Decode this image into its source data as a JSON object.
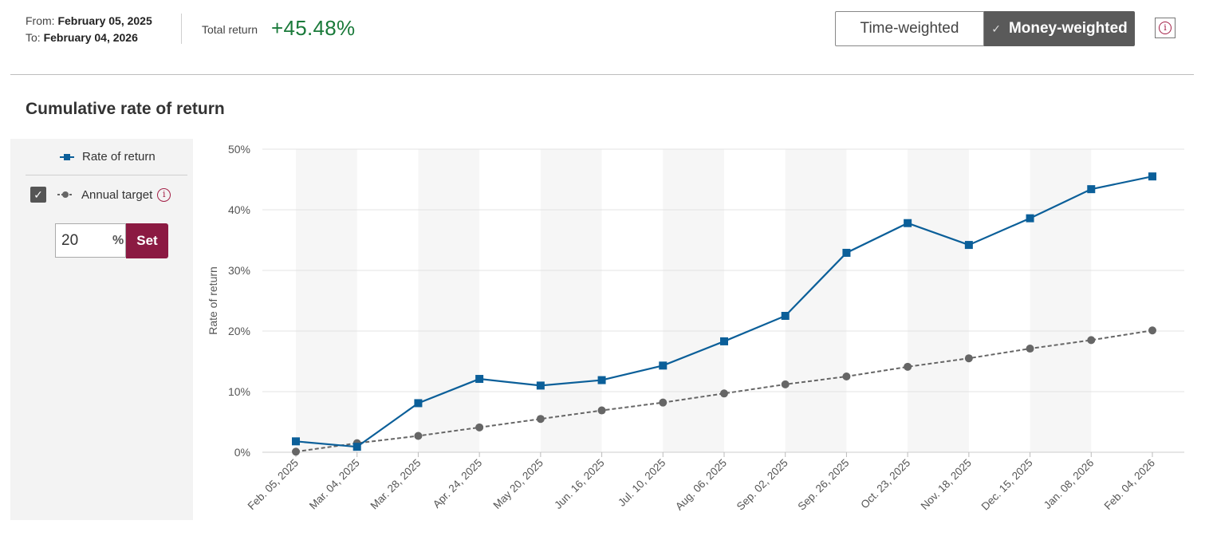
{
  "header": {
    "from_label": "From:",
    "from_date": "February 05, 2025",
    "to_label": "To:",
    "to_date": "February 04, 2026",
    "total_return_label": "Total return",
    "total_return_value": "+45.48%",
    "toggle": {
      "time_weighted": "Time-weighted",
      "money_weighted": "Money-weighted",
      "selected": "money_weighted"
    },
    "info_icon": "info-icon"
  },
  "section_title": "Cumulative rate of return",
  "legend": {
    "rate_of_return": "Rate of return",
    "annual_target": "Annual target",
    "annual_target_checked": true,
    "target_value": "20",
    "percent_symbol": "%",
    "set_label": "Set"
  },
  "colors": {
    "rate_series": "#0b5f99",
    "target_series": "#666666",
    "accent": "#8b1a42",
    "positive": "#1a7a3a"
  },
  "chart_data": {
    "type": "line",
    "ylabel": "Rate of return",
    "ylim": [
      0,
      50
    ],
    "y_ticks": [
      "0%",
      "10%",
      "20%",
      "30%",
      "40%",
      "50%"
    ],
    "categories": [
      "Feb. 05, 2025",
      "Mar. 04, 2025",
      "Mar. 28, 2025",
      "Apr. 24, 2025",
      "May 20, 2025",
      "Jun. 16, 2025",
      "Jul. 10, 2025",
      "Aug. 06, 2025",
      "Sep. 02, 2025",
      "Sep. 26, 2025",
      "Oct. 23, 2025",
      "Nov. 18, 2025",
      "Dec. 15, 2025",
      "Jan. 08, 2026",
      "Feb. 04, 2026"
    ],
    "series": [
      {
        "name": "Rate of return",
        "values": [
          1.8,
          0.9,
          8.1,
          12.1,
          11.0,
          11.9,
          14.3,
          18.3,
          22.5,
          32.9,
          37.8,
          34.2,
          38.6,
          43.4,
          45.5
        ]
      },
      {
        "name": "Annual target",
        "values": [
          0.1,
          1.5,
          2.7,
          4.1,
          5.5,
          6.9,
          8.2,
          9.7,
          11.2,
          12.5,
          14.1,
          15.5,
          17.1,
          18.5,
          20.1
        ]
      }
    ],
    "grid": true,
    "alternating_bands": true
  }
}
